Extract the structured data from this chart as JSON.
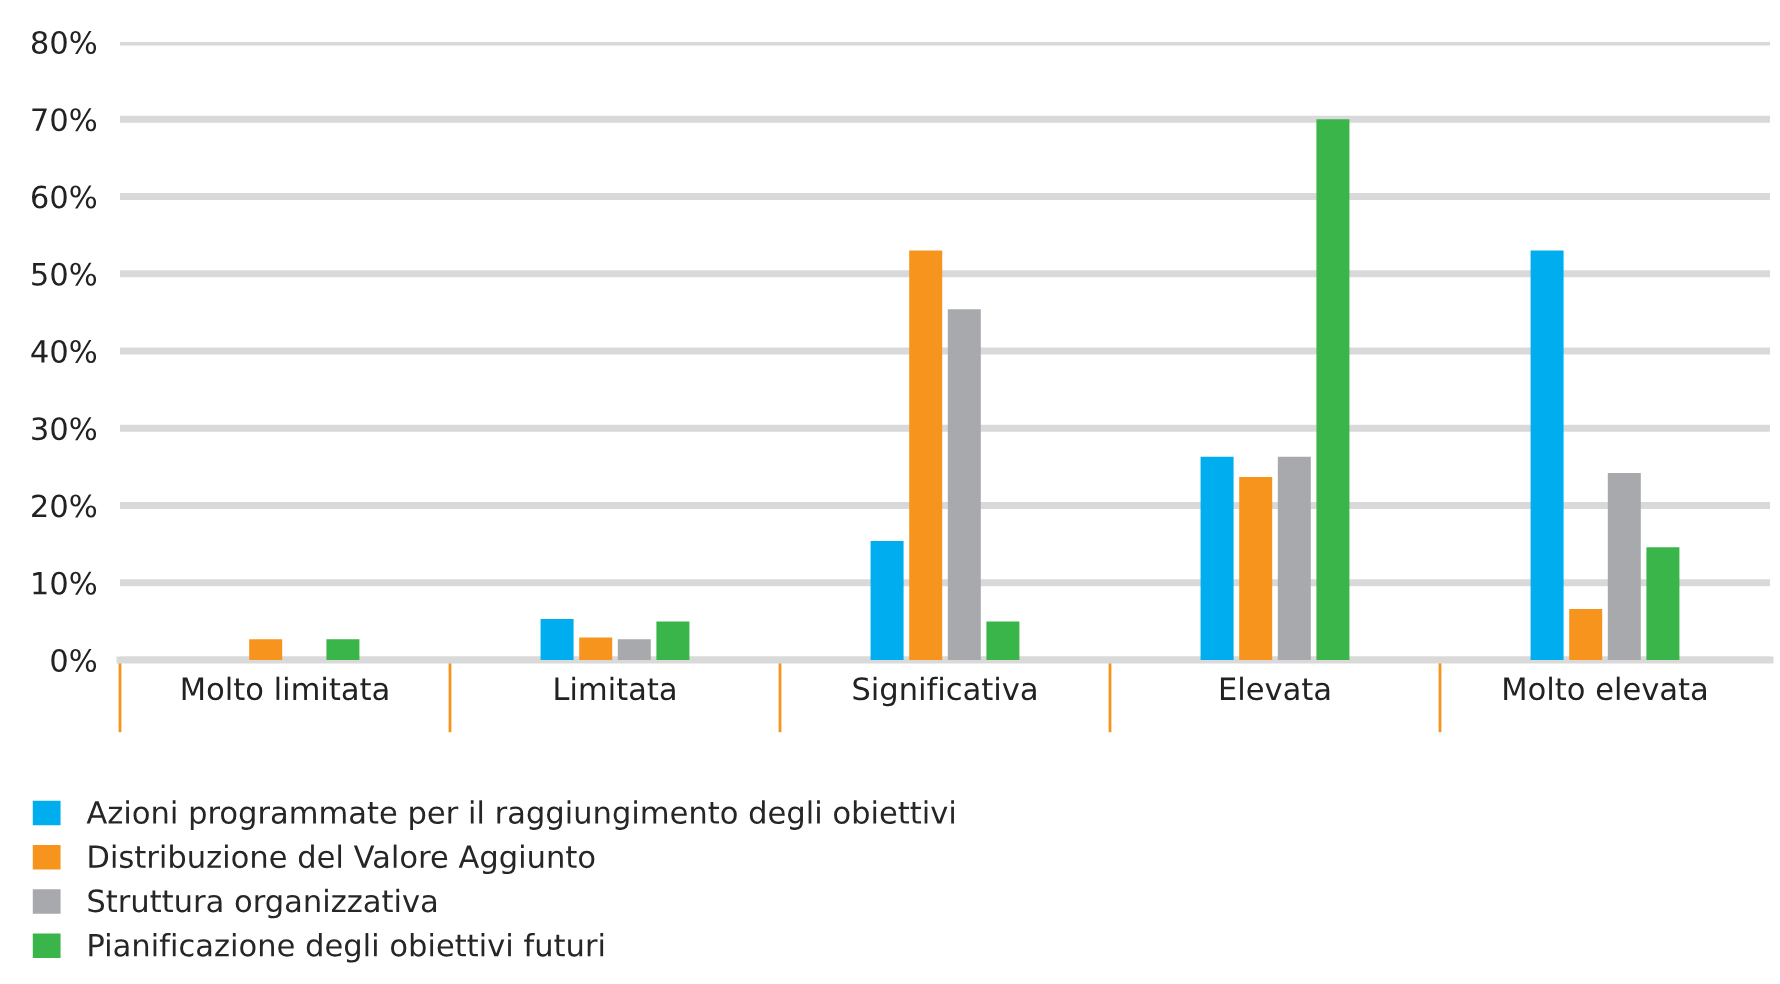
{
  "chart_data": {
    "type": "bar",
    "categories": [
      "Molto limitata",
      "Limitata",
      "Significativa",
      "Elevata",
      "Molto elevata"
    ],
    "series": [
      {
        "name": "Azioni programmate per il raggiungimento degli obiettivi",
        "color": "#00aeef",
        "values": [
          0,
          5.3,
          15.4,
          26.3,
          53.0
        ]
      },
      {
        "name": "Distribuzione del Valore Aggiunto",
        "color": "#f7941d",
        "values": [
          2.7,
          2.9,
          53.0,
          23.7,
          6.6
        ]
      },
      {
        "name": "Struttura organizzativa",
        "color": "#a7a9ac",
        "values": [
          0,
          2.7,
          45.4,
          26.3,
          24.2
        ]
      },
      {
        "name": "Pianificazione degli obiettivi futuri",
        "color": "#39b54a",
        "values": [
          2.7,
          5.0,
          5.0,
          70.0,
          14.6
        ]
      }
    ],
    "ylim": [
      0,
      80
    ],
    "yticks": [
      {
        "value": 0,
        "label": "0%"
      },
      {
        "value": 10,
        "label": "10%"
      },
      {
        "value": 20,
        "label": "20%"
      },
      {
        "value": 30,
        "label": "30%"
      },
      {
        "value": 40,
        "label": "40%"
      },
      {
        "value": 50,
        "label": "50%"
      },
      {
        "value": 60,
        "label": "60%"
      },
      {
        "value": 70,
        "label": "70%"
      },
      {
        "value": 80,
        "label": "80%"
      }
    ],
    "grid": "y",
    "legend": "bottom left"
  }
}
